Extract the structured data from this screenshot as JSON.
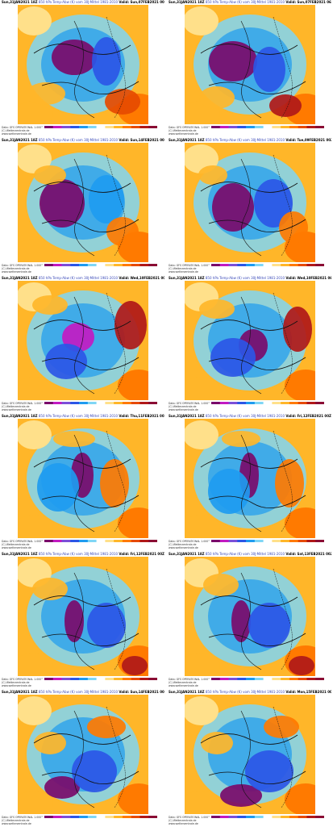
{
  "panels": [
    {
      "run": "Sun,31JAN2021 18Z",
      "title": "850 hPa Temp-Abw (K) vom 30J-Mittel 1981-2010",
      "valid": "Valid: Sun,07FEB2021 00Z"
    },
    {
      "run": "Sun,31JAN2021 18Z",
      "title": "850 hPa Temp-Abw (K) vom 30J-Mittel 1981-2010",
      "valid": "Valid: Sun,07FEB2021 06Z"
    },
    {
      "run": "Sun,31JAN2021 18Z",
      "title": "850 hPa Temp-Abw (K) vom 30J-Mittel 1981-2010",
      "valid": "Valid: Sun,14FEB2021 00Z"
    },
    {
      "run": "Sun,31JAN2021 18Z",
      "title": "850 hPa Temp-Abw (K) vom 30J-Mittel 1981-2010",
      "valid": "Valid: Tue,09FEB2021 00Z"
    },
    {
      "run": "Sun,31JAN2021 18Z",
      "title": "850 hPa Temp-Abw (K) vom 30J-Mittel 1981-2010",
      "valid": "Valid: Wed,10FEB2021 00Z"
    },
    {
      "run": "Sun,31JAN2021 18Z",
      "title": "850 hPa Temp-Abw (K) vom 30J-Mittel 1981-2010",
      "valid": "Valid: Wed,10FEB2021 06"
    },
    {
      "run": "Sun,31JAN2021 18Z",
      "title": "850 hPa Temp-Abw (K) vom 30J-Mittel 1981-2010",
      "valid": "Valid: Thu,11FEB2021 00Z"
    },
    {
      "run": "Sun,31JAN2021 18Z",
      "title": "850 hPa Temp-Abw (K) vom 30J-Mittel 1981-2010",
      "valid": "Valid: Fri,12FEB2021 00Z"
    },
    {
      "run": "Sun,31JAN2021 18Z",
      "title": "850 hPa Temp-Abw (K) vom 30J-Mittel 1981-2010",
      "valid": "Valid: Fri,12FEB2021 00Z"
    },
    {
      "run": "Sun,31JAN2021 18Z",
      "title": "850 hPa Temp-Abw (K) vom 30J-Mittel 1981-2010",
      "valid": "Valid: Sat,13FEB2021 00Z"
    },
    {
      "run": "Sun,31JAN2021 18Z",
      "title": "850 hPa Temp-Abw (K) vom 30J-Mittel 1981-2010",
      "valid": "Valid: Sun,14FEB2021 00Z"
    },
    {
      "run": "Sun,31JAN2021 18Z",
      "title": "850 hPa Temp-Abw (K) vom 30J-Mittel 1981-2010",
      "valid": "Valid: Mon,15FEB2021 00Z"
    }
  ],
  "credit": {
    "line1": "Data: GFS OPERATIONAL 1.000°",
    "line2": "(C) Wetterzentrale.de",
    "line3": "www.wetterzentrale.de"
  },
  "colorbar": {
    "ticks": [
      "-16",
      "-12",
      "-8",
      "-4",
      "0",
      "4",
      "8",
      "12",
      "16"
    ],
    "colors": [
      "#7a0a6a",
      "#c21ac2",
      "#7b4fd8",
      "#2b56e6",
      "#1e9bf0",
      "#7fd6f5",
      "#ffffff",
      "#ffe08a",
      "#ffb629",
      "#ff7a00",
      "#e64a00",
      "#b01818",
      "#8a0d34"
    ]
  }
}
